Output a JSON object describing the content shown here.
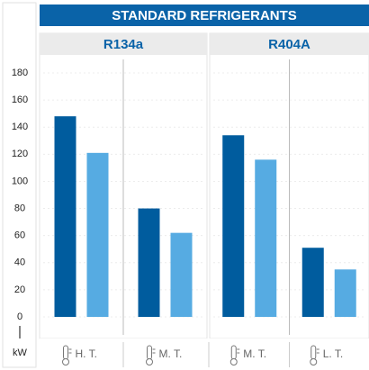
{
  "title": "STANDARD REFRIGERANTS",
  "chart_data": [
    {
      "type": "bar",
      "title": "R134a",
      "ylabel": "kW",
      "categories": [
        "H. T.",
        "M. T."
      ],
      "series": [
        {
          "color": "#005c9e",
          "values": [
            148,
            80
          ]
        },
        {
          "color": "#56abe2",
          "values": [
            121,
            62
          ]
        }
      ],
      "ylim": [
        0,
        180
      ],
      "yticks": [
        0,
        20,
        40,
        60,
        80,
        100,
        120,
        140,
        160,
        180
      ],
      "grid": true
    },
    {
      "type": "bar",
      "title": "R404A",
      "categories": [
        "M. T.",
        "L. T."
      ],
      "series": [
        {
          "color": "#005c9e",
          "values": [
            134,
            51
          ]
        },
        {
          "color": "#56abe2",
          "values": [
            116,
            35
          ]
        }
      ],
      "ylim": [
        0,
        180
      ],
      "yticks": [
        0,
        20,
        40,
        60,
        80,
        100,
        120,
        140,
        160,
        180
      ],
      "grid": true
    }
  ]
}
